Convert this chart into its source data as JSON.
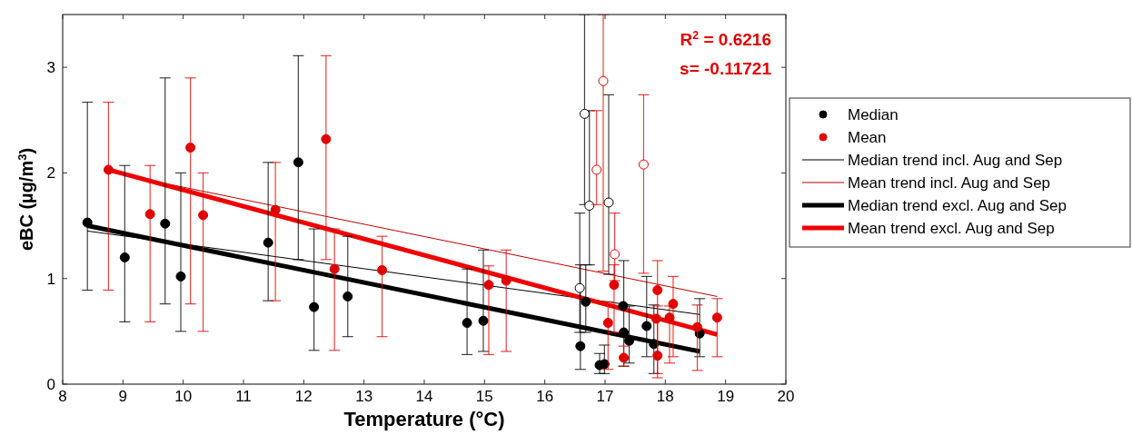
{
  "chart_data": {
    "type": "scatter",
    "xlabel": "Temperature (°C)",
    "ylabel": "eBC (µg/m$^{3}$)",
    "xlim": [
      8,
      20
    ],
    "ylim": [
      0,
      3.5
    ],
    "xticks": [
      8,
      9,
      10,
      11,
      12,
      13,
      14,
      15,
      16,
      17,
      18,
      19,
      20
    ],
    "yticks": [
      0,
      1,
      2,
      3
    ],
    "grid": false,
    "legend": "right",
    "marker": "circle",
    "annotations": [
      "R$^{2}$ = 0.6216",
      "s= -0.11721"
    ],
    "series": [
      {
        "name": "Median",
        "color": "#000000",
        "x": [
          8.41,
          9.03,
          9.7,
          9.96,
          11.41,
          11.91,
          12.17,
          12.73,
          14.71,
          14.98,
          16.59,
          16.68,
          16.91,
          16.99,
          17.3,
          17.31,
          17.4,
          17.69,
          17.81,
          18.57
        ],
        "values": [
          1.53,
          1.2,
          1.52,
          1.02,
          1.34,
          2.1,
          0.73,
          0.83,
          0.58,
          0.6,
          0.36,
          0.78,
          0.18,
          0.19,
          0.74,
          0.49,
          0.41,
          0.55,
          0.38,
          0.48
        ],
        "errors": [
          [
            0.89,
            2.67
          ],
          [
            0.59,
            2.07
          ],
          [
            0.76,
            2.9
          ],
          [
            0.5,
            2.0
          ],
          [
            0.79,
            2.1
          ],
          [
            1.18,
            3.11
          ],
          [
            0.32,
            1.47
          ],
          [
            0.45,
            1.4
          ],
          [
            0.28,
            1.09
          ],
          [
            0.31,
            1.27
          ],
          [
            0.14,
            1.13
          ],
          [
            0.49,
            1.13
          ],
          [
            0.1,
            0.29
          ],
          [
            0.1,
            0.37
          ],
          null,
          [
            0.17,
            1.17
          ],
          [
            0.2,
            0.74
          ],
          [
            0.26,
            1.02
          ],
          [
            0.1,
            0.75
          ],
          [
            0.26,
            0.81
          ]
        ]
      },
      {
        "name": "Mean",
        "color": "#e00000",
        "x": [
          8.76,
          9.45,
          10.12,
          10.33,
          11.53,
          12.37,
          12.51,
          13.3,
          15.07,
          15.36,
          17.05,
          17.15,
          17.31,
          17.87,
          17.87,
          17.85,
          18.07,
          18.13,
          18.53,
          18.86
        ],
        "values": [
          2.03,
          1.61,
          2.24,
          1.6,
          1.65,
          2.32,
          1.09,
          1.08,
          0.94,
          0.98,
          0.58,
          0.94,
          0.25,
          0.89,
          0.27,
          0.62,
          0.63,
          0.76,
          0.54,
          0.63
        ],
        "errors": [
          [
            0.89,
            2.67
          ],
          [
            0.59,
            2.07
          ],
          [
            0.76,
            2.9
          ],
          [
            0.5,
            2.0
          ],
          [
            0.79,
            2.1
          ],
          [
            1.18,
            3.11
          ],
          [
            0.32,
            1.47
          ],
          [
            0.45,
            1.4
          ],
          [
            0.28,
            1.12
          ],
          [
            0.31,
            1.27
          ],
          [
            0.14,
            0.78
          ],
          [
            0.49,
            1.13
          ],
          [
            0.17,
            0.36
          ],
          [
            0.1,
            1.17
          ],
          [
            0.06,
            0.74
          ],
          null,
          [
            0.2,
            0.74
          ],
          [
            0.26,
            1.02
          ],
          [
            0.13,
            0.75
          ],
          [
            0.26,
            0.81
          ]
        ]
      },
      {
        "color": "#000000",
        "x": [
          16.58,
          16.66,
          16.74,
          17.06
        ],
        "values": [
          0.91,
          2.56,
          1.69,
          1.72
        ],
        "errors": [
          [
            0.49,
            1.62
          ],
          [
            1.7,
            3.5
          ],
          [
            1.13,
            2.59
          ],
          [
            1.04,
            2.74
          ]
        ]
      },
      {
        "color": "#e00000",
        "x": [
          16.86,
          16.97,
          17.16,
          17.64
        ],
        "values": [
          2.03,
          2.87,
          1.23,
          2.08
        ],
        "errors": [
          [
            1.7,
            2.59
          ],
          [
            1.07,
            3.5
          ],
          [
            0.98,
            1.62
          ],
          [
            1.05,
            2.74
          ]
        ]
      },
      {
        "name": "Median trend incl. Aug and Sep",
        "type": "line",
        "marker": "none",
        "color": "#000000",
        "x": [
          8.41,
          18.57
        ],
        "values": [
          1.45,
          0.66
        ]
      },
      {
        "name": "Mean trend incl. Aug and Sep",
        "type": "line",
        "marker": "none",
        "color": "#c00000",
        "x": [
          8.76,
          18.86
        ],
        "values": [
          2.01,
          0.83
        ]
      },
      {
        "name": "Median trend excl. Aug and Sep",
        "type": "line",
        "marker": "none",
        "color": "#000000",
        "x": [
          8.41,
          18.57
        ],
        "values": [
          1.5,
          0.31
        ]
      },
      {
        "name": "Mean trend excl. Aug and Sep",
        "type": "line",
        "marker": "none",
        "color": "#ee0000",
        "x": [
          8.76,
          18.86
        ],
        "values": [
          2.03,
          0.47
        ]
      }
    ]
  }
}
